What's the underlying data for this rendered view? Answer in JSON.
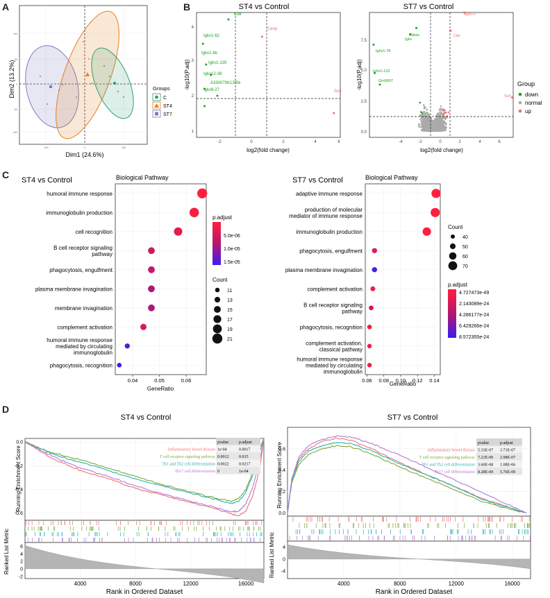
{
  "panels": {
    "a": "A",
    "b": "B",
    "c": "C",
    "d": "D"
  },
  "pca": {
    "xlabel": "Dim1 (24.6%)",
    "ylabel": "Dim2 (13.2%)",
    "xticks": [
      "-100",
      "0",
      "100"
    ],
    "yticks": [
      "100",
      "50",
      "0",
      "-50",
      "-100"
    ],
    "legend_title": "Groups",
    "groups": [
      {
        "name": "C",
        "color": "#2e9e6e",
        "marker": "circle"
      },
      {
        "name": "ST4",
        "color": "#e67e22",
        "marker": "triangle"
      },
      {
        "name": "ST7",
        "color": "#7b7bc0",
        "marker": "square"
      }
    ]
  },
  "volcano": {
    "legend_title": "Group",
    "legend": [
      {
        "label": "down",
        "color": "#1aa31a"
      },
      {
        "label": "normal",
        "color": "#aaaaaa"
      },
      {
        "label": "up",
        "color": "#f06a6a"
      }
    ],
    "xlabel": "log2(fold change)",
    "ylabel": "-log10(P.adj)",
    "st4": {
      "title": "ST4 vs Control",
      "xticks": [
        "-2",
        "0",
        "2",
        "4",
        "6"
      ],
      "yticks": [
        "1",
        "2",
        "3",
        "4"
      ],
      "labels_down": [
        "Igkv1-62",
        "Igkv1-6b",
        "Igkv1-135",
        "Cdk",
        "Igkv12-38",
        "A330070K13Rik",
        "Igkv8-27"
      ],
      "labels_up": [
        "Cenp",
        "Scd"
      ]
    },
    "st7": {
      "title": "ST7 vs Control",
      "xticks": [
        "-4",
        "-2",
        "0",
        "2",
        "4",
        "6"
      ],
      "yticks": [
        "0.0",
        "2.5",
        "5.0",
        "7.5"
      ],
      "labels_down": [
        "Ighv1-78",
        "Ighv1-122",
        "Gm9697",
        "Atbas",
        "Igkv"
      ],
      "labels_up": [
        "Apol7c",
        "Cbx",
        "Scd"
      ]
    }
  },
  "chart_data": [
    {
      "type": "scatter",
      "title": "ST4 vs Control",
      "subtitle": "Biological Pathway",
      "xlabel": "GeneRatio",
      "xticks": [
        "0.04",
        "0.05",
        "0.06"
      ],
      "xlim": [
        0.0335,
        0.0675
      ],
      "categories": [
        "humoral immune response",
        "immunoglobulin production",
        "cell recognition",
        "B cell receptor signaling pathway",
        "phagocytosis, engulfment",
        "plasma membrane invagination",
        "membrane invagination",
        "complement activation",
        "humoral immune response mediated by circulating immunoglobulin",
        "phagocytosis, recognition"
      ],
      "category_lines": [
        [
          "humoral immune response"
        ],
        [
          "immunoglobulin production"
        ],
        [
          "cell recognition"
        ],
        [
          "B cell receptor signaling",
          "pathway"
        ],
        [
          "phagocytosis, engulfment"
        ],
        [
          "plasma membrane invagination"
        ],
        [
          "membrane invagination"
        ],
        [
          "complement activation"
        ],
        [
          "humoral immune response",
          "mediated by circulating",
          "immunoglobulin"
        ],
        [
          "phagocytosis, recognition"
        ]
      ],
      "gene_ratio": [
        0.066,
        0.063,
        0.057,
        0.047,
        0.047,
        0.047,
        0.047,
        0.044,
        0.038,
        0.035
      ],
      "count": [
        21,
        20,
        18,
        15,
        15,
        15,
        15,
        14,
        12,
        11
      ],
      "p_adjust": [
        1e-07,
        1e-06,
        3e-06,
        5e-06,
        6e-06,
        8e-06,
        8e-06,
        4e-06,
        1.3e-05,
        1.5e-05
      ],
      "color_legend_title": "p.adjust",
      "color_ticks": [
        "5.0e-06",
        "1.0e-05",
        "1.5e-05"
      ],
      "size_legend_title": "Count",
      "size_ticks": [
        "11",
        "13",
        "15",
        "17",
        "19",
        "21"
      ]
    },
    {
      "type": "scatter",
      "title": "ST7 vs Control",
      "subtitle": "Biological Pathway",
      "xlabel": "GeneRatio",
      "xticks": [
        "0.06",
        "0.08",
        "0.10",
        "0.12",
        "0.14"
      ],
      "xlim": [
        0.058,
        0.147
      ],
      "categories": [
        "adaptive immune response",
        "production of molecular mediator of immune response",
        "immunoglobulin production",
        "phagocytosis, engulfment",
        "plasma membrane invagination",
        "complement activation",
        "B cell receptor signaling pathway",
        "phagocytosis, recognition",
        "complement activation, classical pathway",
        "humoral immune response mediated by circulating immunoglobulin"
      ],
      "category_lines": [
        [
          "adaptive immune response"
        ],
        [
          "production of molecular",
          "mediator of immune response"
        ],
        [
          "immunoglobulin production"
        ],
        [
          "phagocytosis, engulfment"
        ],
        [
          "plasma membrane invagination"
        ],
        [
          "complement activation"
        ],
        [
          "B cell receptor signaling",
          "pathway"
        ],
        [
          "phagocytosis, recognition"
        ],
        [
          "complement activation,",
          "classical pathway"
        ],
        [
          "humoral immune response",
          "mediated by circulating",
          "immunoglobulin"
        ]
      ],
      "gene_ratio": [
        0.142,
        0.141,
        0.131,
        0.069,
        0.069,
        0.067,
        0.065,
        0.063,
        0.063,
        0.063
      ],
      "count": [
        70,
        70,
        65,
        40,
        40,
        38,
        37,
        36,
        35,
        35
      ],
      "p_adjust": [
        4.7e-49,
        4.7e-49,
        4.7e-49,
        2e-24,
        8e-24,
        1e-24,
        3e-24,
        1e-24,
        1e-24,
        1e-24
      ],
      "color_legend_title": "p.adjust",
      "color_ticks": [
        "4.727473e-49",
        "2.143089e-24",
        "4.286177e-24",
        "6.429266e-24",
        "8.572355e-24"
      ],
      "size_legend_title": "Count",
      "size_ticks": [
        "40",
        "50",
        "60",
        "70"
      ]
    },
    {
      "type": "line",
      "title": "ST4 vs Control",
      "ylabel_top": "Running Enrichment Score",
      "ylabel_bottom": "Ranked List Metric",
      "xlabel": "Rank in Ordered Dataset",
      "xticks": [
        "4000",
        "8000",
        "12000",
        "16000"
      ],
      "yticks": [
        "0.0",
        "-0.2",
        "-0.4",
        "-0.6"
      ],
      "metric_ticks": [
        "6",
        "4",
        "2",
        "0",
        "-2"
      ],
      "table_headers": [
        "pvalue",
        "p.adjust"
      ],
      "series": [
        {
          "name": "Inflammatory bowel disease",
          "color": "#f07070",
          "pvalue": "1e-04",
          "p_adjust": "0.0017",
          "x": [
            0,
            1000,
            2000,
            3000,
            4000,
            6000,
            8000,
            10000,
            12000,
            14000,
            15000,
            15500,
            16000,
            16500,
            17000,
            17300
          ],
          "y": [
            0,
            -0.07,
            -0.14,
            -0.19,
            -0.24,
            -0.31,
            -0.39,
            -0.45,
            -0.51,
            -0.57,
            -0.61,
            -0.62,
            -0.58,
            -0.45,
            -0.22,
            0.02
          ]
        },
        {
          "name": "T cell receptor signaling pathway",
          "color": "#7aa83a",
          "pvalue": "0.0012",
          "p_adjust": "0.015",
          "x": [
            0,
            1000,
            2000,
            3000,
            4000,
            6000,
            8000,
            10000,
            12000,
            14000,
            15000,
            15500,
            16000,
            16500,
            17000,
            17300
          ],
          "y": [
            0,
            -0.05,
            -0.09,
            -0.12,
            -0.15,
            -0.22,
            -0.29,
            -0.36,
            -0.42,
            -0.48,
            -0.5,
            -0.47,
            -0.4,
            -0.25,
            -0.05,
            0.03
          ]
        },
        {
          "name": "Th1 and Th2 cell differentiation",
          "color": "#2bb0b0",
          "pvalue": "0.0022",
          "p_adjust": "0.0217",
          "x": [
            0,
            1000,
            2000,
            3000,
            4000,
            6000,
            8000,
            10000,
            12000,
            14000,
            15000,
            15500,
            16000,
            16500,
            17000,
            17300
          ],
          "y": [
            0,
            -0.05,
            -0.1,
            -0.14,
            -0.17,
            -0.24,
            -0.31,
            -0.37,
            -0.43,
            -0.49,
            -0.52,
            -0.5,
            -0.42,
            -0.28,
            -0.08,
            0.02
          ]
        },
        {
          "name": "Th17 cell differentiation",
          "color": "#b07ad8",
          "pvalue": "0",
          "p_adjust": "1e-04",
          "x": [
            0,
            1000,
            2000,
            3000,
            4000,
            6000,
            8000,
            10000,
            12000,
            14000,
            15000,
            15500,
            16000,
            16500,
            17000,
            17300
          ],
          "y": [
            0,
            -0.06,
            -0.12,
            -0.17,
            -0.22,
            -0.29,
            -0.37,
            -0.44,
            -0.5,
            -0.56,
            -0.59,
            -0.58,
            -0.52,
            -0.38,
            -0.15,
            0.02
          ]
        }
      ]
    },
    {
      "type": "line",
      "title": "ST7 vs Control",
      "ylabel_top": "Running Enrichment Score",
      "ylabel_bottom": "Ranked List Metric",
      "xlabel": "Rank in Ordered Dataset",
      "xticks": [
        "4000",
        "8000",
        "12000",
        "16000"
      ],
      "yticks": [
        "0.6",
        "0.4",
        "0.2",
        "0.0"
      ],
      "metric_ticks": [
        "4",
        "0",
        "-4"
      ],
      "table_headers": [
        "pvalue",
        "p.adjust"
      ],
      "series": [
        {
          "name": "Inflammatory bowel disease",
          "color": "#f07070",
          "pvalue": "5.33E-07",
          "p_adjust": "3.71E-07",
          "x": [
            0,
            300,
            800,
            1500,
            2500,
            3500,
            4500,
            6000,
            8000,
            10000,
            12000,
            14000,
            16000,
            17000
          ],
          "y": [
            0,
            0.3,
            0.5,
            0.6,
            0.67,
            0.7,
            0.68,
            0.6,
            0.47,
            0.35,
            0.24,
            0.13,
            0.04,
            0.0
          ]
        },
        {
          "name": "T cell receptor signaling pathway",
          "color": "#7aa83a",
          "pvalue": "7.21E-09",
          "p_adjust": "2.98E-07",
          "x": [
            0,
            300,
            800,
            1500,
            2500,
            3500,
            4500,
            6000,
            8000,
            10000,
            12000,
            14000,
            16000,
            17000
          ],
          "y": [
            0,
            0.28,
            0.45,
            0.55,
            0.6,
            0.63,
            0.62,
            0.55,
            0.43,
            0.32,
            0.21,
            0.1,
            0.03,
            0.0
          ]
        },
        {
          "name": "Th1 and Th2 cell differentiation",
          "color": "#2bb0b0",
          "pvalue": "3.60E-08",
          "p_adjust": "1.08E-06",
          "x": [
            0,
            300,
            800,
            1500,
            2500,
            3500,
            4500,
            6000,
            8000,
            10000,
            12000,
            14000,
            16000,
            17000
          ],
          "y": [
            0,
            0.3,
            0.48,
            0.58,
            0.63,
            0.66,
            0.65,
            0.58,
            0.46,
            0.35,
            0.24,
            0.12,
            0.04,
            0.0
          ]
        },
        {
          "name": "Th17 cell differentiation",
          "color": "#b07ad8",
          "pvalue": "8.28E-09",
          "p_adjust": "5.76E-09",
          "x": [
            0,
            300,
            800,
            1500,
            2500,
            3500,
            4500,
            6000,
            8000,
            10000,
            12000,
            14000,
            16000,
            17000
          ],
          "y": [
            0,
            0.32,
            0.52,
            0.63,
            0.69,
            0.72,
            0.71,
            0.65,
            0.54,
            0.42,
            0.3,
            0.18,
            0.06,
            0.0
          ]
        }
      ]
    }
  ]
}
